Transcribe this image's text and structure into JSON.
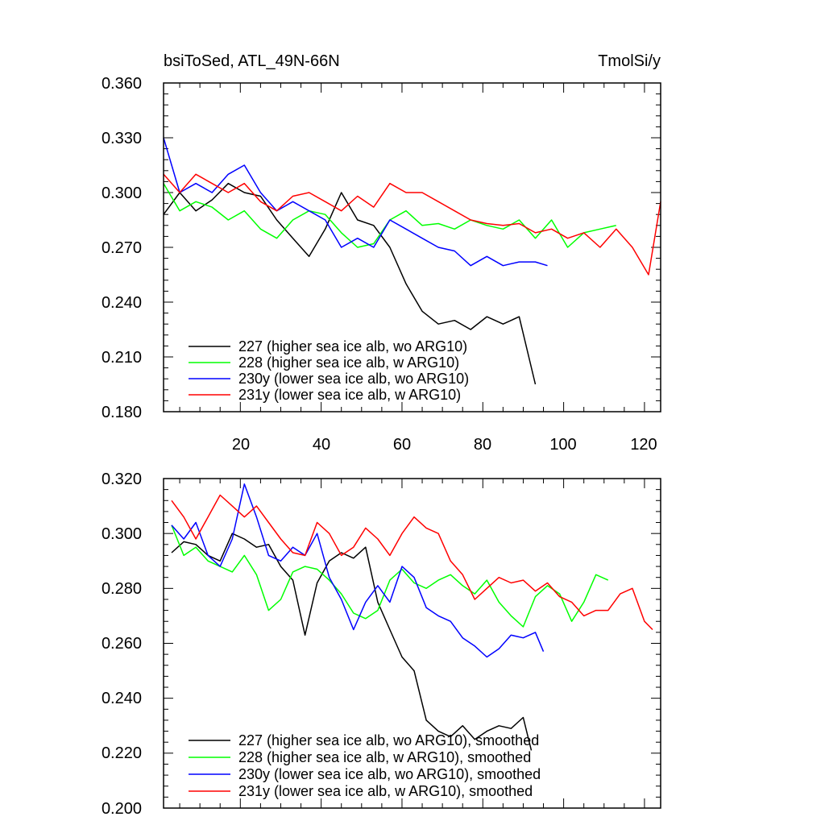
{
  "charts": [
    {
      "title_left": "bsiToSed, ATL_49N-66N",
      "title_right": "TmolSi/y",
      "y_tick_labels": [
        "0.360",
        "0.330",
        "0.300",
        "0.270",
        "0.240",
        "0.210",
        "0.180"
      ],
      "x_tick_labels": [
        "20",
        "40",
        "60",
        "80",
        "100",
        "120"
      ],
      "legend": [
        "227 (higher sea ice alb, wo ARG10)",
        "228 (higher sea ice alb, w ARG10)",
        "230y (lower sea ice alb, wo ARG10)",
        "231y (lower sea ice alb, w ARG10)"
      ]
    },
    {
      "title_left": "",
      "title_right": "",
      "y_tick_labels": [
        "0.320",
        "0.300",
        "0.280",
        "0.260",
        "0.240",
        "0.220",
        "0.200"
      ],
      "x_tick_labels": [],
      "legend": [
        "227 (higher sea ice alb, wo ARG10), smoothed",
        "228 (higher sea ice alb, w ARG10), smoothed",
        "230y (lower sea ice alb, wo ARG10), smoothed",
        "231y (lower sea ice alb, w ARG10), smoothed"
      ]
    }
  ],
  "chart_data": [
    {
      "type": "line",
      "title": "bsiToSed, ATL_49N-66N",
      "units": "TmolSi/y",
      "xlim": [
        1,
        124
      ],
      "ylim": [
        0.18,
        0.36
      ],
      "grid": false,
      "legend_position": "bottom-left",
      "x_ticks": [
        20,
        40,
        60,
        80,
        100,
        120
      ],
      "y_ticks": [
        0.36,
        0.33,
        0.3,
        0.27,
        0.24,
        0.21,
        0.18
      ],
      "series": [
        {
          "name": "227 (higher sea ice alb, wo ARG10)",
          "color": "#000000",
          "x": [
            1,
            5,
            9,
            13,
            17,
            21,
            25,
            29,
            33,
            37,
            41,
            45,
            49,
            53,
            57,
            61,
            65,
            69,
            73,
            77,
            81,
            85,
            89,
            93
          ],
          "y": [
            0.288,
            0.3,
            0.29,
            0.296,
            0.305,
            0.3,
            0.298,
            0.285,
            0.275,
            0.265,
            0.28,
            0.3,
            0.285,
            0.282,
            0.27,
            0.25,
            0.235,
            0.228,
            0.23,
            0.225,
            0.232,
            0.228,
            0.232,
            0.195
          ]
        },
        {
          "name": "228 (higher sea ice alb, w ARG10)",
          "color": "#00ff00",
          "x": [
            1,
            5,
            9,
            13,
            17,
            21,
            25,
            29,
            33,
            37,
            41,
            45,
            49,
            53,
            57,
            61,
            65,
            69,
            73,
            77,
            81,
            85,
            89,
            93,
            97,
            101,
            105,
            109,
            113
          ],
          "y": [
            0.305,
            0.29,
            0.295,
            0.292,
            0.285,
            0.29,
            0.28,
            0.275,
            0.285,
            0.29,
            0.288,
            0.278,
            0.27,
            0.272,
            0.285,
            0.29,
            0.282,
            0.283,
            0.28,
            0.285,
            0.282,
            0.28,
            0.285,
            0.275,
            0.285,
            0.27,
            0.278,
            0.28,
            0.282
          ]
        },
        {
          "name": "230y (lower sea ice alb, wo ARG10)",
          "color": "#0000ff",
          "x": [
            1,
            5,
            9,
            13,
            17,
            21,
            25,
            29,
            33,
            37,
            41,
            45,
            49,
            53,
            57,
            61,
            65,
            69,
            73,
            77,
            81,
            85,
            89,
            93,
            96
          ],
          "y": [
            0.33,
            0.3,
            0.305,
            0.3,
            0.31,
            0.315,
            0.3,
            0.29,
            0.295,
            0.29,
            0.285,
            0.27,
            0.275,
            0.27,
            0.285,
            0.28,
            0.275,
            0.27,
            0.268,
            0.26,
            0.265,
            0.26,
            0.262,
            0.262,
            0.26
          ]
        },
        {
          "name": "231y (lower sea ice alb, w ARG10)",
          "color": "#ff0000",
          "x": [
            1,
            5,
            9,
            13,
            17,
            21,
            25,
            29,
            33,
            37,
            41,
            45,
            49,
            53,
            57,
            61,
            65,
            69,
            73,
            77,
            81,
            85,
            89,
            93,
            97,
            101,
            105,
            109,
            113,
            117,
            121,
            124
          ],
          "y": [
            0.31,
            0.3,
            0.31,
            0.305,
            0.3,
            0.305,
            0.295,
            0.29,
            0.298,
            0.3,
            0.295,
            0.29,
            0.298,
            0.292,
            0.305,
            0.3,
            0.3,
            0.295,
            0.29,
            0.285,
            0.283,
            0.282,
            0.283,
            0.278,
            0.28,
            0.275,
            0.278,
            0.27,
            0.28,
            0.27,
            0.255,
            0.295
          ]
        }
      ]
    },
    {
      "type": "line",
      "title": "",
      "xlim": [
        1,
        124
      ],
      "ylim": [
        0.2,
        0.32
      ],
      "grid": false,
      "legend_position": "bottom-left",
      "x_ticks": [
        20,
        40,
        60,
        80,
        100,
        120
      ],
      "y_ticks": [
        0.32,
        0.3,
        0.28,
        0.26,
        0.24,
        0.22,
        0.2
      ],
      "series": [
        {
          "name": "227 (higher sea ice alb, wo ARG10), smoothed",
          "color": "#000000",
          "x": [
            3,
            6,
            9,
            12,
            15,
            18,
            21,
            24,
            27,
            30,
            33,
            36,
            39,
            42,
            45,
            48,
            51,
            54,
            57,
            60,
            63,
            66,
            69,
            72,
            75,
            78,
            81,
            84,
            87,
            90,
            92
          ],
          "y": [
            0.293,
            0.297,
            0.296,
            0.292,
            0.29,
            0.3,
            0.298,
            0.295,
            0.296,
            0.288,
            0.283,
            0.263,
            0.282,
            0.29,
            0.293,
            0.291,
            0.295,
            0.275,
            0.265,
            0.255,
            0.25,
            0.232,
            0.228,
            0.226,
            0.23,
            0.225,
            0.228,
            0.23,
            0.229,
            0.233,
            0.221
          ]
        },
        {
          "name": "228 (higher sea ice alb, w ARG10), smoothed",
          "color": "#00ff00",
          "x": [
            3,
            6,
            9,
            12,
            15,
            18,
            21,
            24,
            27,
            30,
            33,
            36,
            39,
            42,
            45,
            48,
            51,
            54,
            57,
            60,
            63,
            66,
            69,
            72,
            75,
            78,
            81,
            84,
            87,
            90,
            93,
            96,
            99,
            102,
            105,
            108,
            111
          ],
          "y": [
            0.303,
            0.292,
            0.295,
            0.29,
            0.288,
            0.286,
            0.292,
            0.285,
            0.272,
            0.276,
            0.286,
            0.288,
            0.287,
            0.283,
            0.278,
            0.271,
            0.269,
            0.272,
            0.283,
            0.287,
            0.282,
            0.28,
            0.283,
            0.285,
            0.281,
            0.278,
            0.283,
            0.275,
            0.27,
            0.266,
            0.277,
            0.281,
            0.278,
            0.268,
            0.275,
            0.285,
            0.283
          ]
        },
        {
          "name": "230y (lower sea ice alb, wo ARG10), smoothed",
          "color": "#0000ff",
          "x": [
            3,
            6,
            9,
            12,
            15,
            18,
            21,
            24,
            27,
            30,
            33,
            36,
            39,
            42,
            45,
            48,
            51,
            54,
            57,
            60,
            63,
            66,
            69,
            72,
            75,
            78,
            81,
            84,
            87,
            90,
            93,
            95
          ],
          "y": [
            0.303,
            0.298,
            0.304,
            0.292,
            0.288,
            0.298,
            0.318,
            0.306,
            0.292,
            0.29,
            0.295,
            0.292,
            0.3,
            0.284,
            0.276,
            0.265,
            0.275,
            0.281,
            0.275,
            0.288,
            0.284,
            0.273,
            0.27,
            0.268,
            0.262,
            0.259,
            0.255,
            0.258,
            0.263,
            0.262,
            0.264,
            0.257
          ]
        },
        {
          "name": "231y (lower sea ice alb, w ARG10), smoothed",
          "color": "#ff0000",
          "x": [
            3,
            6,
            9,
            12,
            15,
            18,
            21,
            24,
            27,
            30,
            33,
            36,
            39,
            42,
            45,
            48,
            51,
            54,
            57,
            60,
            63,
            66,
            69,
            72,
            75,
            78,
            81,
            84,
            87,
            90,
            93,
            96,
            99,
            102,
            105,
            108,
            111,
            114,
            117,
            120,
            122
          ],
          "y": [
            0.312,
            0.306,
            0.298,
            0.306,
            0.314,
            0.31,
            0.306,
            0.31,
            0.304,
            0.298,
            0.293,
            0.292,
            0.304,
            0.3,
            0.292,
            0.295,
            0.302,
            0.298,
            0.292,
            0.3,
            0.306,
            0.302,
            0.3,
            0.29,
            0.285,
            0.276,
            0.28,
            0.284,
            0.282,
            0.283,
            0.279,
            0.282,
            0.277,
            0.275,
            0.27,
            0.272,
            0.272,
            0.278,
            0.28,
            0.268,
            0.265
          ]
        }
      ]
    }
  ]
}
